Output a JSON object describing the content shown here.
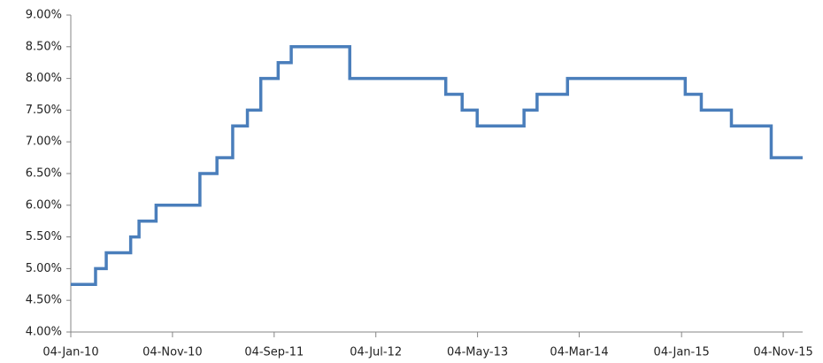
{
  "chart_data": {
    "type": "line",
    "step": true,
    "x": [
      "2010-01-04",
      "2010-03-19",
      "2010-03-19",
      "2010-04-20",
      "2010-04-20",
      "2010-07-02",
      "2010-07-02",
      "2010-07-27",
      "2010-07-27",
      "2010-09-16",
      "2010-09-16",
      "2011-01-25",
      "2011-01-25",
      "2011-03-17",
      "2011-03-17",
      "2011-05-03",
      "2011-05-03",
      "2011-06-16",
      "2011-06-16",
      "2011-07-26",
      "2011-07-26",
      "2011-09-16",
      "2011-09-16",
      "2011-10-25",
      "2011-10-25",
      "2012-04-17",
      "2012-04-17",
      "2013-01-29",
      "2013-01-29",
      "2013-03-19",
      "2013-03-19",
      "2013-05-03",
      "2013-05-03",
      "2013-09-20",
      "2013-09-20",
      "2013-10-29",
      "2013-10-29",
      "2014-01-28",
      "2014-01-28",
      "2015-01-15",
      "2015-01-15",
      "2015-03-04",
      "2015-03-04",
      "2015-06-02",
      "2015-06-02",
      "2015-09-29",
      "2015-09-29",
      "2016-01-01"
    ],
    "series": [
      {
        "color": "#4a7ebb",
        "values": [
          4.75,
          4.75,
          5.0,
          5.0,
          5.25,
          5.25,
          5.5,
          5.5,
          5.75,
          5.75,
          6.0,
          6.0,
          6.5,
          6.5,
          6.75,
          6.75,
          7.25,
          7.25,
          7.5,
          7.5,
          8.0,
          8.0,
          8.25,
          8.25,
          8.5,
          8.5,
          8.0,
          8.0,
          7.75,
          7.75,
          7.5,
          7.5,
          7.25,
          7.25,
          7.5,
          7.5,
          7.75,
          7.75,
          8.0,
          8.0,
          7.75,
          7.75,
          7.5,
          7.5,
          7.25,
          7.25,
          6.75,
          6.75
        ]
      }
    ],
    "xlim": [
      "2010-01-04",
      "2016-01-01"
    ],
    "xticks": [
      {
        "value": "2010-01-04",
        "label": "04-Jan-10"
      },
      {
        "value": "2010-11-04",
        "label": "04-Nov-10"
      },
      {
        "value": "2011-09-04",
        "label": "04-Sep-11"
      },
      {
        "value": "2012-07-04",
        "label": "04-Jul-12"
      },
      {
        "value": "2013-05-04",
        "label": "04-May-13"
      },
      {
        "value": "2014-03-04",
        "label": "04-Mar-14"
      },
      {
        "value": "2015-01-04",
        "label": "04-Jan-15"
      },
      {
        "value": "2015-11-04",
        "label": "04-Nov-15"
      }
    ],
    "ylim": [
      4,
      9
    ],
    "yticks": [
      {
        "value": 4,
        "label": "4.00%"
      },
      {
        "value": 4.5,
        "label": "4.50%"
      },
      {
        "value": 5,
        "label": "5.00%"
      },
      {
        "value": 5.5,
        "label": "5.50%"
      },
      {
        "value": 6,
        "label": "6.00%"
      },
      {
        "value": 6.5,
        "label": "6.50%"
      },
      {
        "value": 7,
        "label": "7.00%"
      },
      {
        "value": 7.5,
        "label": "7.50%"
      },
      {
        "value": 8,
        "label": "8.00%"
      },
      {
        "value": 8.5,
        "label": "8.50%"
      },
      {
        "value": 9,
        "label": "9.00%"
      }
    ],
    "grid": false
  }
}
